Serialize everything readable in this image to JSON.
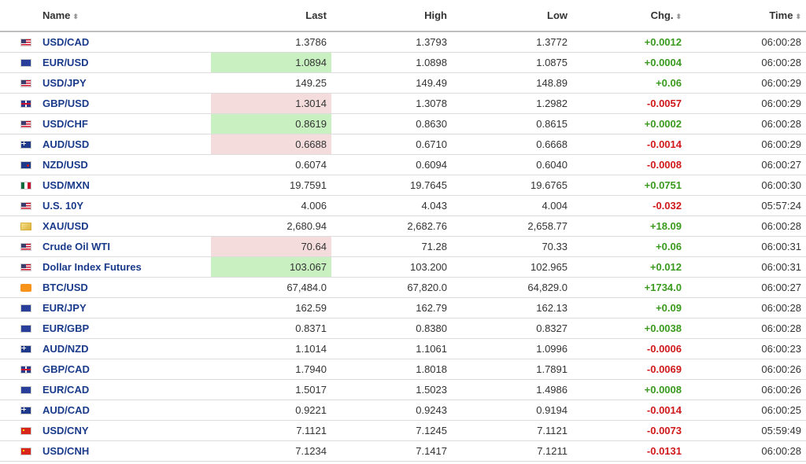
{
  "headers": {
    "name": "Name",
    "last": "Last",
    "high": "High",
    "low": "Low",
    "chg": "Chg.",
    "time": "Time"
  },
  "colors": {
    "up": "#3a9a1e",
    "down": "#d0191b",
    "link": "#1a3a8a",
    "highlight_up": "#c8f0c0",
    "highlight_down": "#f4dcdc"
  },
  "rows": [
    {
      "flag": "us-flag-icon",
      "name": "USD/CAD",
      "last": "1.3786",
      "high": "1.3793",
      "low": "1.3772",
      "chg": "+0.0012",
      "time": "06:00:28"
    },
    {
      "flag": "eu-flag-icon",
      "name": "EUR/USD",
      "last": "1.0894",
      "high": "1.0898",
      "low": "1.0875",
      "chg": "+0.0004",
      "time": "06:00:28"
    },
    {
      "flag": "us-flag-icon",
      "name": "USD/JPY",
      "last": "149.25",
      "high": "149.49",
      "low": "148.89",
      "chg": "+0.06",
      "time": "06:00:29"
    },
    {
      "flag": "gb-flag-icon",
      "name": "GBP/USD",
      "last": "1.3014",
      "high": "1.3078",
      "low": "1.2982",
      "chg": "-0.0057",
      "time": "06:00:29"
    },
    {
      "flag": "us-flag-icon",
      "name": "USD/CHF",
      "last": "0.8619",
      "high": "0.8630",
      "low": "0.8615",
      "chg": "+0.0002",
      "time": "06:00:28"
    },
    {
      "flag": "au-flag-icon",
      "name": "AUD/USD",
      "last": "0.6688",
      "high": "0.6710",
      "low": "0.6668",
      "chg": "-0.0014",
      "time": "06:00:29"
    },
    {
      "flag": "nz-flag-icon",
      "name": "NZD/USD",
      "last": "0.6074",
      "high": "0.6094",
      "low": "0.6040",
      "chg": "-0.0008",
      "time": "06:00:27"
    },
    {
      "flag": "mx-flag-icon",
      "name": "USD/MXN",
      "last": "19.7591",
      "high": "19.7645",
      "low": "19.6765",
      "chg": "+0.0751",
      "time": "06:00:30"
    },
    {
      "flag": "us-flag-icon",
      "name": "U.S. 10Y",
      "last": "4.006",
      "high": "4.043",
      "low": "4.004",
      "chg": "-0.032",
      "time": "05:57:24"
    },
    {
      "flag": "gold-icon",
      "name": "XAU/USD",
      "last": "2,680.94",
      "high": "2,682.76",
      "low": "2,658.77",
      "chg": "+18.09",
      "time": "06:00:28"
    },
    {
      "flag": "us-flag-icon",
      "name": "Crude Oil WTI",
      "last": "70.64",
      "high": "71.28",
      "low": "70.33",
      "chg": "+0.06",
      "time": "06:00:31"
    },
    {
      "flag": "us-flag-icon",
      "name": "Dollar Index Futures",
      "last": "103.067",
      "high": "103.200",
      "low": "102.965",
      "chg": "+0.012",
      "time": "06:00:31"
    },
    {
      "flag": "bitcoin-icon",
      "name": "BTC/USD",
      "last": "67,484.0",
      "high": "67,820.0",
      "low": "64,829.0",
      "chg": "+1734.0",
      "time": "06:00:27"
    },
    {
      "flag": "eu-flag-icon",
      "name": "EUR/JPY",
      "last": "162.59",
      "high": "162.79",
      "low": "162.13",
      "chg": "+0.09",
      "time": "06:00:28"
    },
    {
      "flag": "eu-flag-icon",
      "name": "EUR/GBP",
      "last": "0.8371",
      "high": "0.8380",
      "low": "0.8327",
      "chg": "+0.0038",
      "time": "06:00:28"
    },
    {
      "flag": "au-flag-icon",
      "name": "AUD/NZD",
      "last": "1.1014",
      "high": "1.1061",
      "low": "1.0996",
      "chg": "-0.0006",
      "time": "06:00:23"
    },
    {
      "flag": "gb-flag-icon",
      "name": "GBP/CAD",
      "last": "1.7940",
      "high": "1.8018",
      "low": "1.7891",
      "chg": "-0.0069",
      "time": "06:00:26"
    },
    {
      "flag": "eu-flag-icon",
      "name": "EUR/CAD",
      "last": "1.5017",
      "high": "1.5023",
      "low": "1.4986",
      "chg": "+0.0008",
      "time": "06:00:26"
    },
    {
      "flag": "au-flag-icon",
      "name": "AUD/CAD",
      "last": "0.9221",
      "high": "0.9243",
      "low": "0.9194",
      "chg": "-0.0014",
      "time": "06:00:25"
    },
    {
      "flag": "cn-flag-icon",
      "name": "USD/CNY",
      "last": "7.1121",
      "high": "7.1245",
      "low": "7.1121",
      "chg": "-0.0073",
      "time": "05:59:49"
    },
    {
      "flag": "cn-flag-icon",
      "name": "USD/CNH",
      "last": "7.1234",
      "high": "7.1417",
      "low": "7.1211",
      "chg": "-0.0131",
      "time": "06:00:28"
    }
  ],
  "highlights": {
    "1": "up",
    "3": "down",
    "4": "up",
    "5": "down",
    "10": "down",
    "11": "up"
  }
}
